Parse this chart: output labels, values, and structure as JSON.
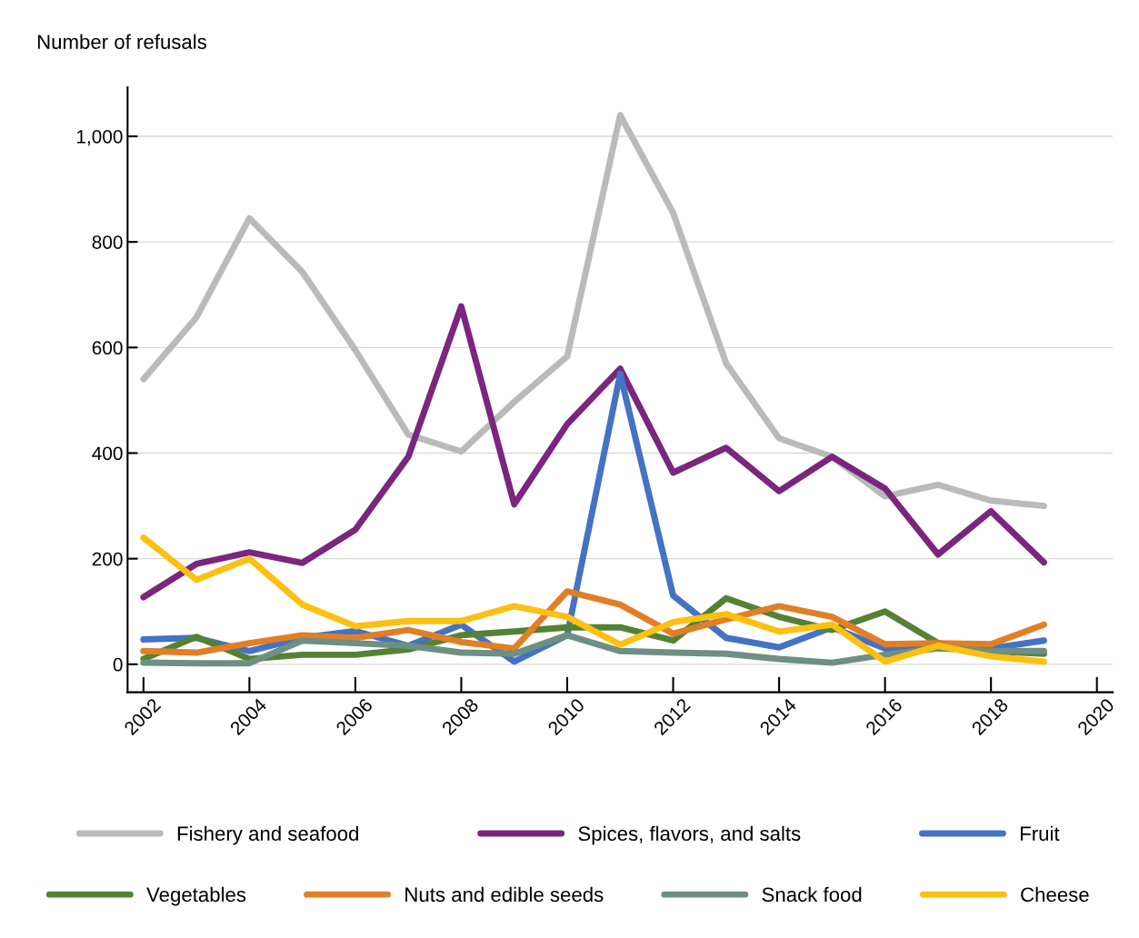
{
  "chart_data": {
    "type": "line",
    "ylabel": "Number of refusals",
    "x": [
      2002,
      2003,
      2004,
      2005,
      2006,
      2007,
      2008,
      2009,
      2010,
      2011,
      2012,
      2013,
      2014,
      2015,
      2016,
      2017,
      2018,
      2019
    ],
    "series": [
      {
        "name": "Fishery and seafood",
        "color": "#bababa",
        "values": [
          540,
          657,
          845,
          743,
          595,
          435,
          403,
          497,
          583,
          1040,
          855,
          570,
          428,
          393,
          318,
          340,
          310,
          300
        ]
      },
      {
        "name": "Spices, flavors, and salts",
        "color": "#7b267e",
        "values": [
          127,
          190,
          212,
          192,
          255,
          393,
          678,
          303,
          455,
          560,
          363,
          410,
          328,
          393,
          333,
          208,
          290,
          193
        ]
      },
      {
        "name": "Fruit",
        "color": "#4472c4",
        "values": [
          47,
          50,
          25,
          50,
          63,
          35,
          75,
          5,
          55,
          550,
          130,
          50,
          32,
          70,
          30,
          30,
          30,
          45
        ]
      },
      {
        "name": "Vegetables",
        "color": "#548235",
        "values": [
          10,
          52,
          10,
          18,
          18,
          28,
          55,
          62,
          70,
          70,
          45,
          125,
          90,
          65,
          100,
          40,
          25,
          20
        ]
      },
      {
        "name": "Nuts and edible seeds",
        "color": "#e07f26",
        "values": [
          25,
          22,
          40,
          55,
          50,
          65,
          42,
          30,
          138,
          113,
          58,
          85,
          110,
          90,
          38,
          40,
          38,
          75
        ]
      },
      {
        "name": "Snack food",
        "color": "#6e8f83",
        "values": [
          3,
          2,
          2,
          45,
          40,
          35,
          22,
          20,
          55,
          25,
          22,
          20,
          10,
          3,
          18,
          30,
          25,
          25
        ]
      },
      {
        "name": "Cheese",
        "color": "#fcc010",
        "values": [
          240,
          160,
          200,
          113,
          72,
          82,
          82,
          110,
          90,
          37,
          80,
          95,
          62,
          75,
          5,
          35,
          15,
          5
        ]
      }
    ],
    "xlim": [
      2001.7,
      2020.3
    ],
    "xticks": [
      2002,
      2004,
      2006,
      2008,
      2010,
      2012,
      2014,
      2016,
      2018,
      2020
    ],
    "ylim": [
      -53,
      1093
    ],
    "yticks": [
      0,
      200,
      400,
      600,
      800,
      {
        "value": 1000,
        "label": "1,000"
      }
    ],
    "grid": "y",
    "legend": "bottom",
    "line_style": "solid",
    "marker": "none"
  }
}
